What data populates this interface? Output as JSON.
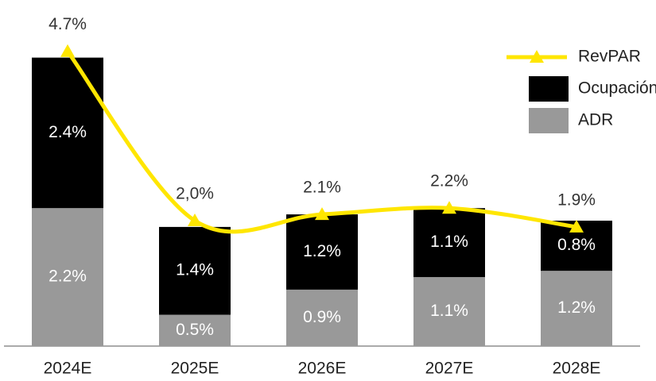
{
  "chart_data": {
    "type": "bar",
    "stacked": true,
    "categories": [
      "2024E",
      "2025E",
      "2026E",
      "2027E",
      "2028E"
    ],
    "series": [
      {
        "name": "ADR",
        "color": "#999999",
        "values": [
          2.2,
          0.5,
          0.9,
          1.1,
          1.2
        ],
        "value_labels": [
          "2.2%",
          "0.5%",
          "0.9%",
          "1.1%",
          "1.2%"
        ]
      },
      {
        "name": "Ocupación",
        "color": "#000000",
        "values": [
          2.4,
          1.4,
          1.2,
          1.1,
          0.8
        ],
        "value_labels": [
          "2.4%",
          "1.4%",
          "1.2%",
          "1.1%",
          "0.8%"
        ]
      },
      {
        "name": "RevPAR",
        "color": "#FFE600",
        "type": "line",
        "values": [
          4.7,
          2.0,
          2.1,
          2.2,
          1.9
        ],
        "value_labels": [
          "4.7%",
          "2,0%",
          "2.1%",
          "2.2%",
          "1.9%"
        ]
      }
    ],
    "legend": "top-right"
  }
}
